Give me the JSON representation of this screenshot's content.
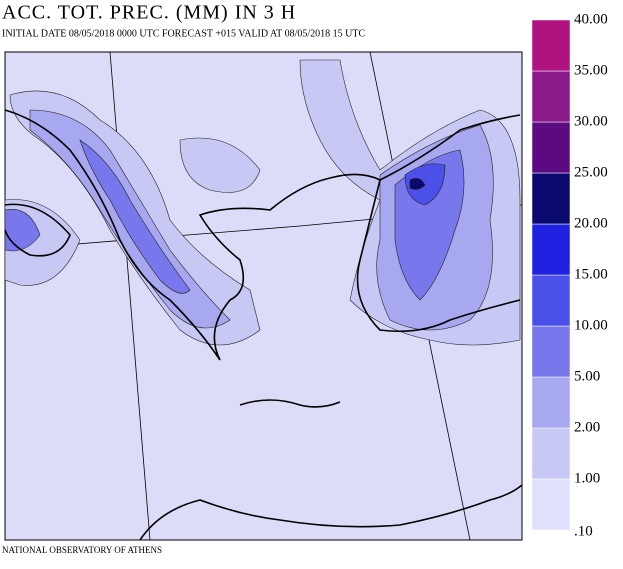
{
  "header": {
    "title": "ACC. TOT. PREC. (MM) IN 3 H",
    "subtitle": "INITIAL DATE 08/05/2018   0000 UTC FORECAST +015 VALID AT  08/05/2018  15 UTC"
  },
  "legend": {
    "levels": [
      {
        "value": 0.1,
        "label": ".10"
      },
      {
        "value": 1,
        "label": "1.00"
      },
      {
        "value": 2,
        "label": "2.00"
      },
      {
        "value": 5,
        "label": "5.00"
      },
      {
        "value": 10,
        "label": "10.00"
      },
      {
        "value": 15,
        "label": "15.00"
      },
      {
        "value": 20,
        "label": "20.00"
      },
      {
        "value": 25,
        "label": "25.00"
      },
      {
        "value": 30,
        "label": "30.00"
      },
      {
        "value": 35,
        "label": "35.00"
      },
      {
        "value": 40,
        "label": "40.00"
      }
    ],
    "colors": [
      "#e0e0fa",
      "#c8c8f4",
      "#a8a8f0",
      "#7878ec",
      "#4a50e8",
      "#2020e0",
      "#0a0a6e",
      "#5b0a82",
      "#8a1a8a",
      "#b0127f"
    ]
  },
  "footer": "NATIONAL OBSERVATORY OF ATHENS"
}
